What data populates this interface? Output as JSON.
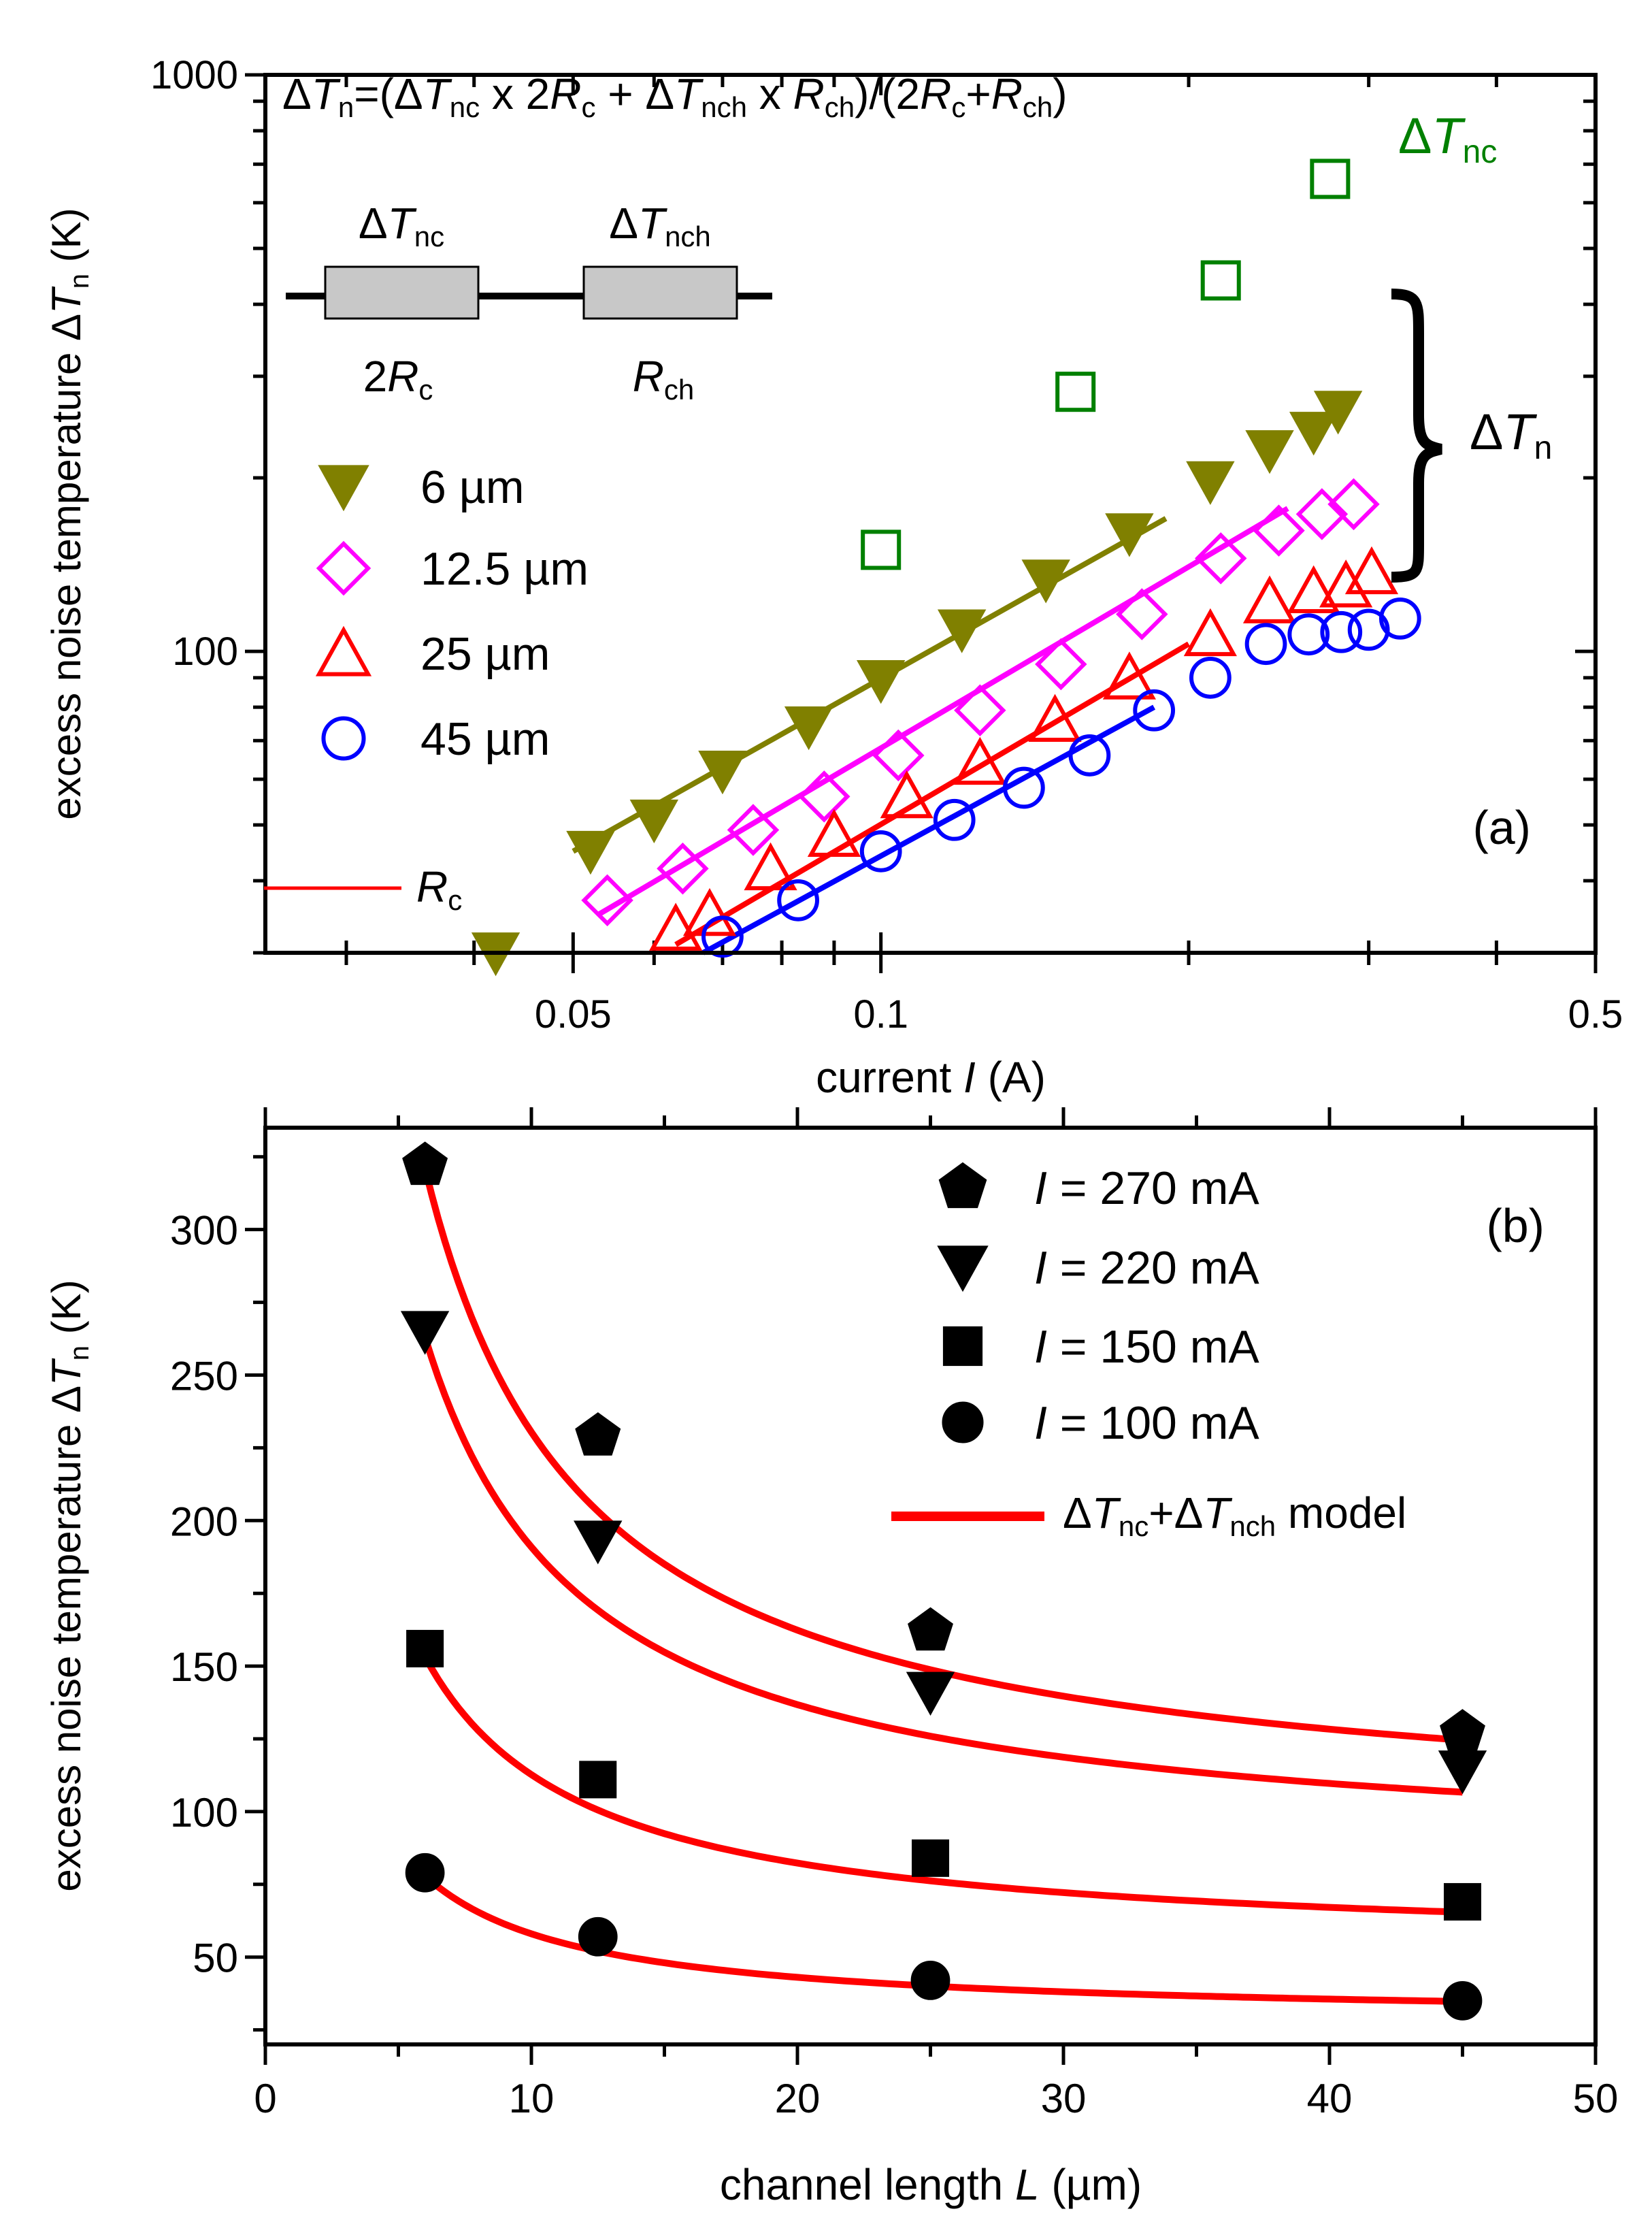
{
  "chart_data": [
    {
      "type": "scatter",
      "panel": "(a)",
      "xscale": "log",
      "yscale": "log",
      "xlim": [
        0.025,
        0.5
      ],
      "ylim": [
        30,
        1000
      ],
      "xlabel": "current I (A)",
      "xlabel_parts": [
        "current ",
        "I",
        " (A)"
      ],
      "ylabel": "excess noise temperature ΔTn (K)",
      "ylabel_parts": [
        "excess noise temperature Δ",
        "T",
        "n",
        " (K)"
      ],
      "xticks": [
        {
          "value": 0.05,
          "label": "0.05"
        },
        {
          "value": 0.1,
          "label": "0.1"
        },
        {
          "value": 0.5,
          "label": "0.5"
        }
      ],
      "yticks": [
        {
          "value": 100,
          "label": "100"
        },
        {
          "value": 1000,
          "label": "1000"
        }
      ],
      "formula": "ΔTn=(ΔTnc x 2Rc + ΔTnch x Rch)/(2Rc+Rch)",
      "inset": {
        "left_label": "ΔTnc",
        "left_resistor": "2Rc",
        "right_label": "ΔTnch",
        "right_resistor": "Rch"
      },
      "rc_legend": "Rc",
      "annotation_tnc": "ΔTnc",
      "annotation_tn": "ΔTn",
      "series": [
        {
          "name": "6 μm",
          "label": "6 µm",
          "marker": "triangle-down-filled",
          "color": "#808000",
          "x": [
            0.042,
            0.052,
            0.06,
            0.07,
            0.085,
            0.1,
            0.12,
            0.145,
            0.175,
            0.21,
            0.24,
            0.265,
            0.28
          ],
          "y": [
            30,
            45,
            51,
            62,
            74,
            89,
            109,
            133,
            160,
            197,
            223,
            240,
            261
          ],
          "fit_x": [
            0.05,
            0.19
          ],
          "fit_y": [
            45,
            170
          ]
        },
        {
          "name": "12.5 μm",
          "label": "12.5 µm",
          "marker": "diamond-open",
          "color": "#ff00ff",
          "x": [
            0.054,
            0.064,
            0.075,
            0.088,
            0.104,
            0.125,
            0.15,
            0.18,
            0.215,
            0.245,
            0.27,
            0.29
          ],
          "y": [
            37,
            42,
            49,
            56,
            66,
            79,
            95,
            116,
            145,
            162,
            173,
            180
          ],
          "fit_x": [
            0.053,
            0.25
          ],
          "fit_y": [
            35,
            177
          ]
        },
        {
          "name": "25 μm",
          "label": "25 µm",
          "marker": "triangle-up-open",
          "color": "#ff0000",
          "x": [
            0.063,
            0.068,
            0.078,
            0.09,
            0.106,
            0.125,
            0.148,
            0.175,
            0.21,
            0.24,
            0.265,
            0.285,
            0.302
          ],
          "y": [
            33,
            35,
            42,
            48,
            56,
            64,
            76,
            90,
            107,
            122,
            127,
            130,
            137
          ],
          "fit_x": [
            0.063,
            0.2
          ],
          "fit_y": [
            31,
            103
          ]
        },
        {
          "name": "45 μm",
          "label": "45 µm",
          "marker": "circle-open",
          "color": "#0000ff",
          "x": [
            0.07,
            0.083,
            0.1,
            0.118,
            0.138,
            0.16,
            0.185,
            0.21,
            0.238,
            0.262,
            0.282,
            0.3,
            0.322
          ],
          "y": [
            32,
            37,
            45,
            51,
            58,
            66,
            79,
            90,
            103,
            107,
            108,
            109,
            114
          ],
          "fit_x": [
            0.067,
            0.185
          ],
          "fit_y": [
            30,
            80
          ]
        },
        {
          "name": "ΔTnc",
          "marker": "square-open",
          "color": "#008000",
          "x": [
            0.1,
            0.155,
            0.215,
            0.275
          ],
          "y": [
            150,
            282,
            440,
            660
          ]
        }
      ]
    },
    {
      "type": "scatter",
      "panel": "(b)",
      "xlim": [
        0,
        50
      ],
      "ylim": [
        20,
        335
      ],
      "xlabel": "channel length L (μm)",
      "xlabel_parts": [
        "channel length ",
        "L",
        " (µm)"
      ],
      "ylabel": "excess noise temperature ΔTn (K)",
      "ylabel_parts": [
        "excess noise temperature Δ",
        "T",
        "n",
        " (K)"
      ],
      "xticks": [
        0,
        10,
        20,
        30,
        40,
        50
      ],
      "yticks": [
        50,
        100,
        150,
        200,
        250,
        300
      ],
      "series": [
        {
          "name": "I = 270 mA",
          "prefix": "I",
          "label": " = 270 mA",
          "marker": "pentagon-filled",
          "x": [
            6,
            12.5,
            25,
            45
          ],
          "y": [
            322,
            229,
            162,
            127
          ],
          "model": {
            "a": 94.3,
            "b": 1361
          }
        },
        {
          "name": "I = 220 mA",
          "prefix": "I",
          "label": " = 220 mA",
          "marker": "triangle-down-filled",
          "x": [
            6,
            12.5,
            25,
            45
          ],
          "y": [
            265,
            193,
            141,
            114
          ],
          "model": {
            "a": 82.6,
            "b": 1083
          }
        },
        {
          "name": "I = 150 mA",
          "prefix": "I",
          "label": " = 150 mA",
          "marker": "square-filled",
          "x": [
            6,
            12.5,
            25,
            45
          ],
          "y": [
            156,
            111,
            84,
            69
          ],
          "model": {
            "a": 51.9,
            "b": 608
          }
        },
        {
          "name": "I = 100 mA",
          "prefix": "I",
          "label": " = 100 mA",
          "marker": "circle-filled",
          "x": [
            6,
            12.5,
            25,
            45
          ],
          "y": [
            79,
            57,
            42,
            35
          ],
          "model": {
            "a": 28.1,
            "b": 299
          }
        }
      ],
      "model_legend": "ΔTnc+ΔTnch model",
      "colors": {
        "model": "#ff0000",
        "markers": "#000000"
      }
    }
  ]
}
